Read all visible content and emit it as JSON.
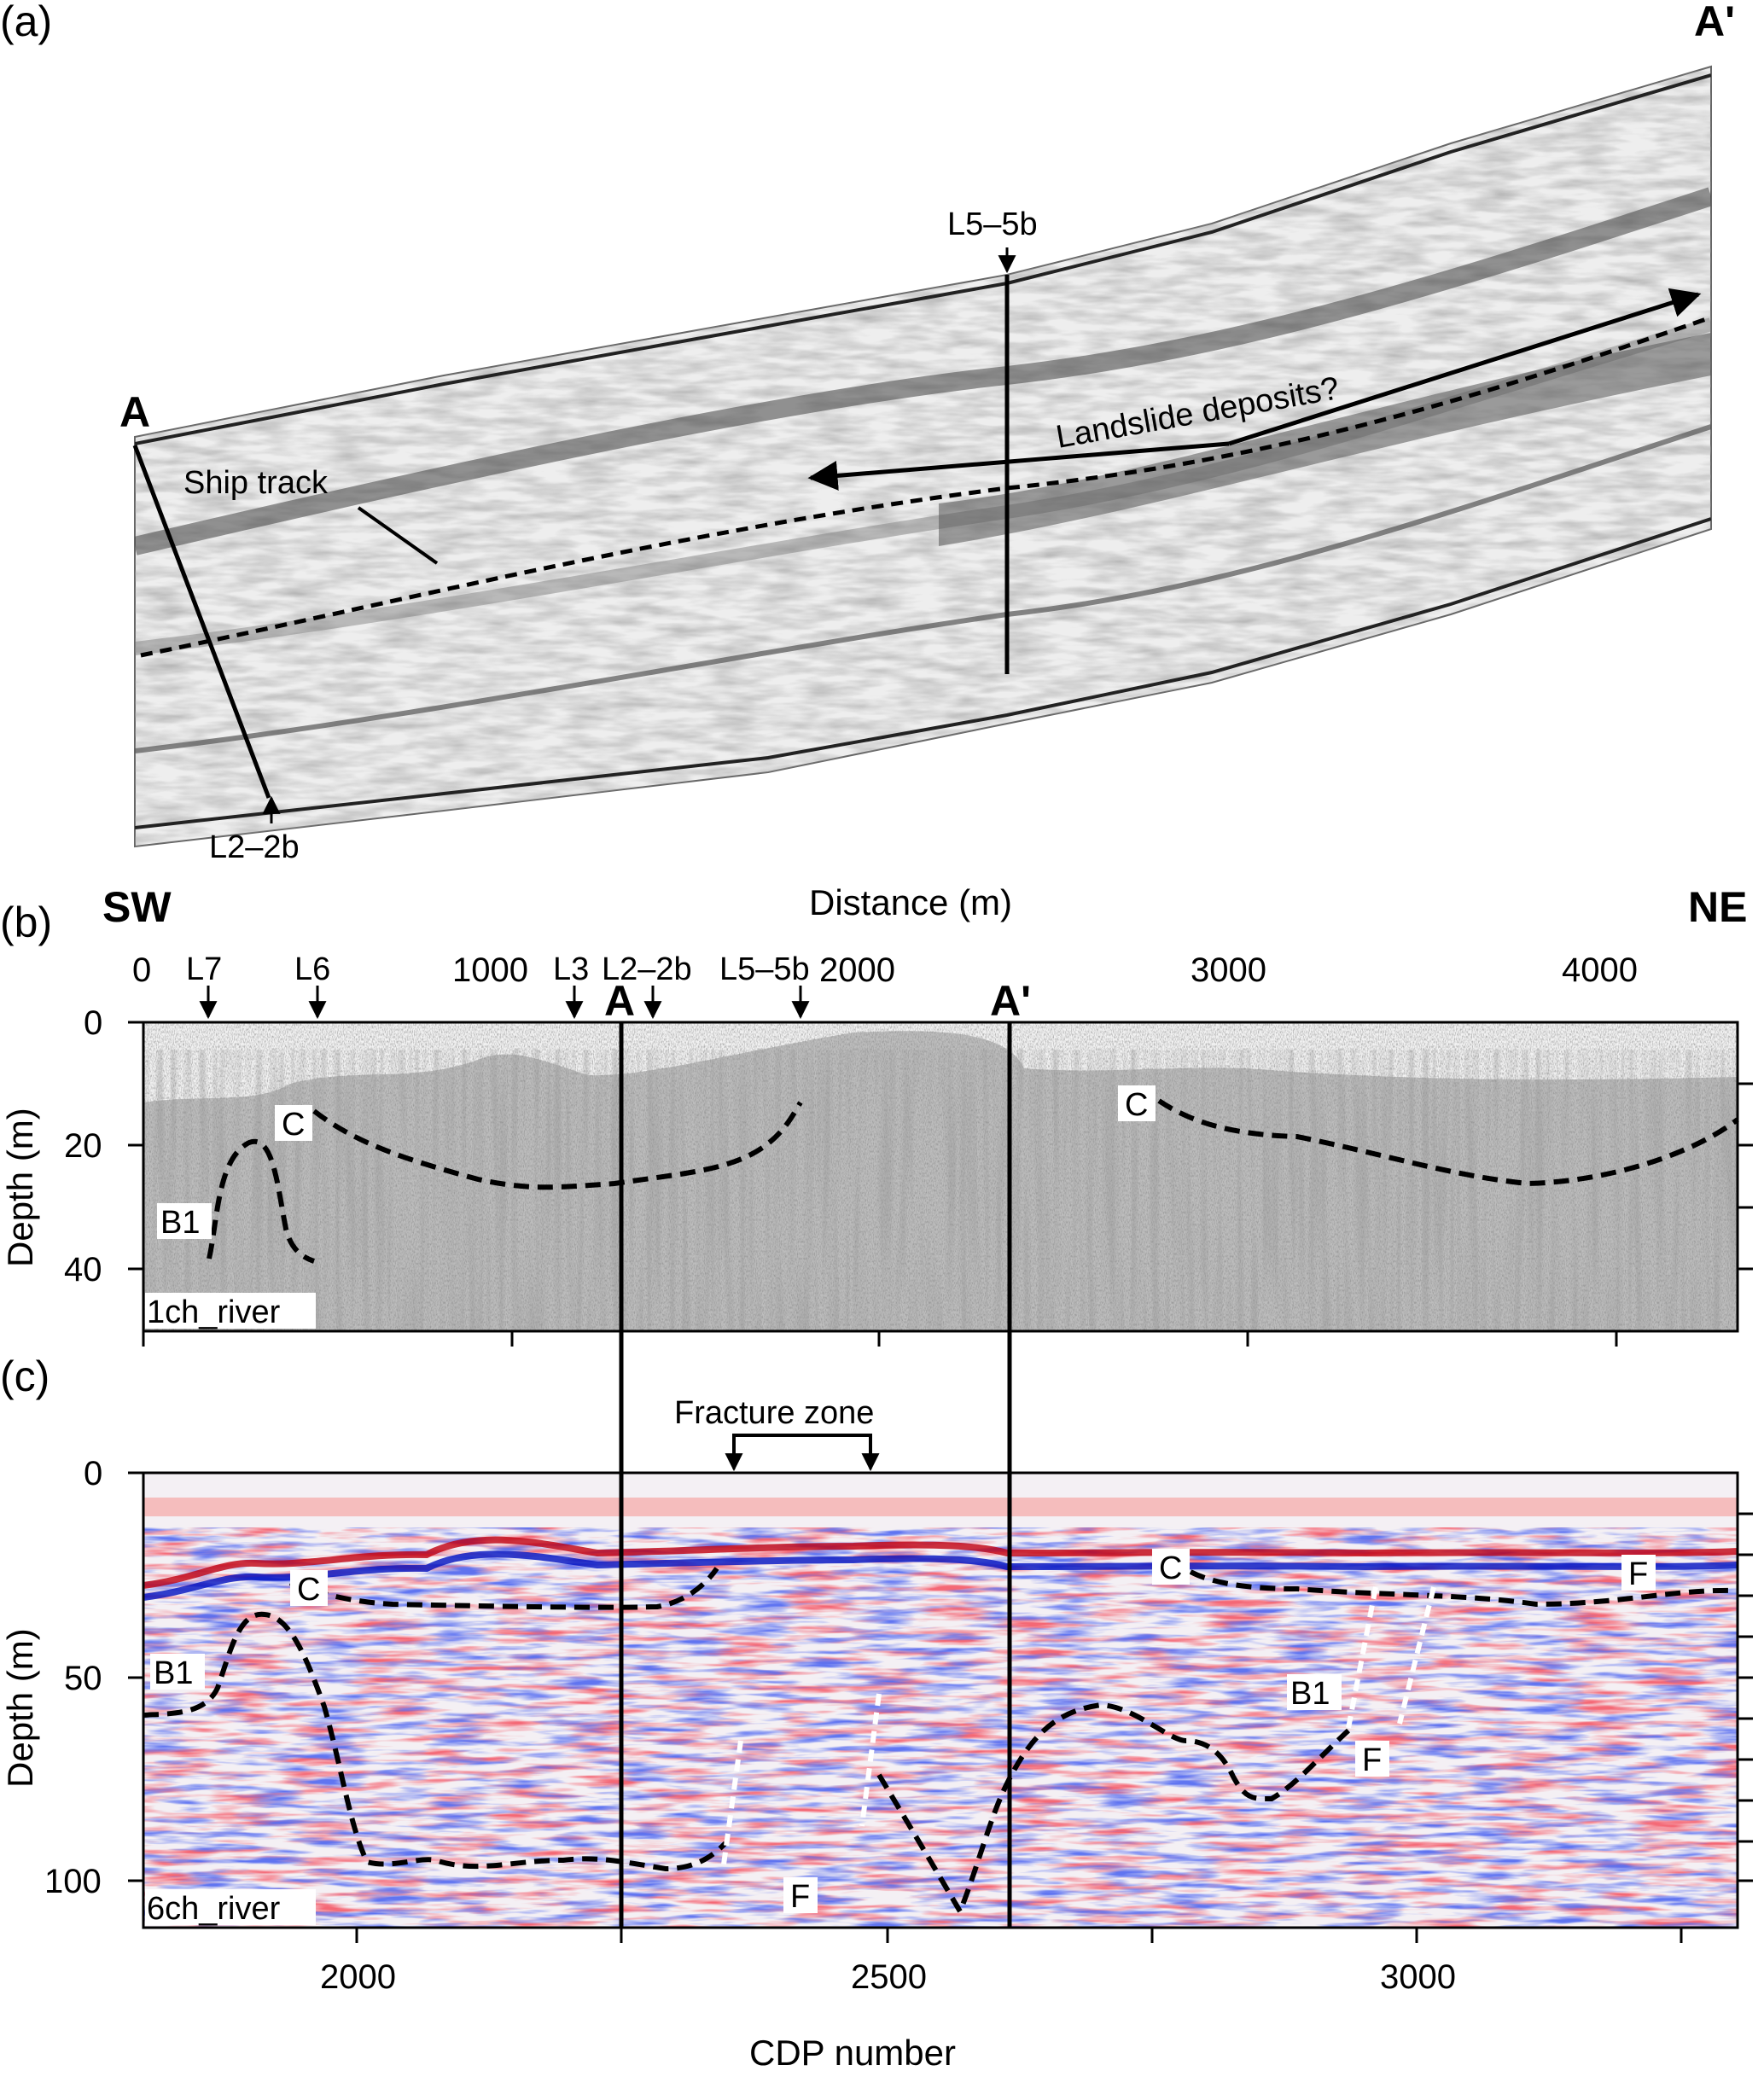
{
  "panels": {
    "a": {
      "tag": "(a)",
      "start_label": "A",
      "end_label": "A'",
      "line_top_label": "L5–5b",
      "line_bottom_label": "L2–2b",
      "ship_track_label": "Ship track",
      "landslide_label": "Landslide deposits?"
    },
    "b": {
      "tag": "(b)",
      "left_dir": "SW",
      "right_dir": "NE",
      "x_axis_title": "Distance (m)",
      "x_ticks": [
        "0",
        "1000",
        "2000",
        "3000",
        "4000"
      ],
      "line_markers": [
        "L7",
        "L6",
        "L3",
        "L2–2b",
        "L5–5b"
      ],
      "section_markers": [
        "A",
        "A'"
      ],
      "y_axis_title": "Depth (m)",
      "y_ticks": [
        "0",
        "20",
        "40"
      ],
      "horizon_labels": [
        "C",
        "C",
        "B1"
      ],
      "dataset_label": "1ch_river"
    },
    "c": {
      "tag": "(c)",
      "fracture_zone_label": "Fracture zone",
      "y_axis_title": "Depth (m)",
      "y_ticks": [
        "0",
        "50",
        "100"
      ],
      "x_axis_title": "CDP number",
      "x_ticks": [
        "2000",
        "2500",
        "3000"
      ],
      "horizon_labels": [
        "C",
        "C",
        "B1",
        "B1",
        "F",
        "F",
        "F"
      ],
      "dataset_label": "6ch_river"
    }
  },
  "colors": {
    "seismic_positive": "#e8202a",
    "seismic_negative": "#1a28e0",
    "line": "#000000",
    "fault": "#ffffff"
  }
}
